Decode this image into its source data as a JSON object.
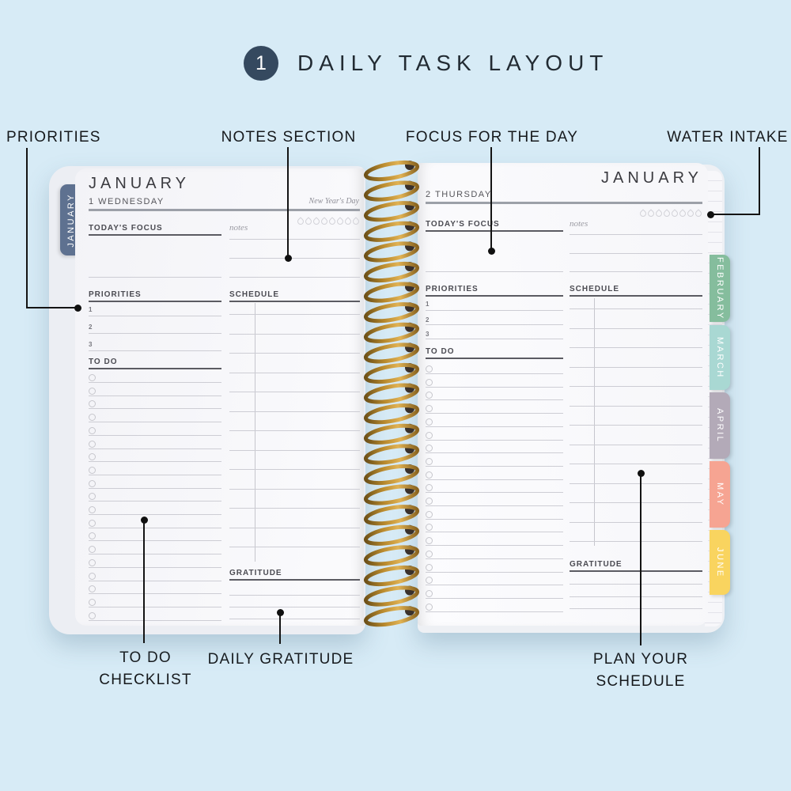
{
  "header": {
    "step_number": "1",
    "title": "DAILY TASK LAYOUT"
  },
  "callouts": {
    "priorities": "PRIORITIES",
    "notes_section": "NOTES SECTION",
    "focus_for_the_day": "FOCUS FOR THE DAY",
    "water_intake": "WATER INTAKE",
    "todo_checklist": "TO DO CHECKLIST",
    "daily_gratitude": "DAILY GRATITUDE",
    "plan_your_schedule": "PLAN YOUR SCHEDULE"
  },
  "left_page": {
    "side_tab": "JANUARY",
    "month": "JANUARY",
    "date": "1 WEDNESDAY",
    "holiday": "New Year's Day",
    "water_drops": 8,
    "focus_label": "TODAY'S FOCUS",
    "notes_label": "notes",
    "priorities_label": "PRIORITIES",
    "priority_items": [
      "1",
      "2",
      "3"
    ],
    "schedule_label": "SCHEDULE",
    "todo_label": "TO DO",
    "gratitude_label": "GRATITUDE"
  },
  "right_page": {
    "month": "JANUARY",
    "date": "2 THURSDAY",
    "water_drops": 8,
    "focus_label": "TODAY'S FOCUS",
    "notes_label": "notes",
    "priorities_label": "PRIORITIES",
    "priority_items": [
      "1",
      "2",
      "3"
    ],
    "schedule_label": "SCHEDULE",
    "todo_label": "TO DO",
    "gratitude_label": "GRATITUDE"
  },
  "month_tabs": [
    {
      "label": "FEBRUARY",
      "color": "#85bd9d"
    },
    {
      "label": "MARCH",
      "color": "#a9d8d3"
    },
    {
      "label": "APRIL",
      "color": "#b3aab8"
    },
    {
      "label": "MAY",
      "color": "#f6a492"
    },
    {
      "label": "JUNE",
      "color": "#f9d45f"
    }
  ],
  "colors": {
    "background": "#d7ebf6",
    "badge": "#35495f",
    "january_tab": "#5e7190",
    "annotation": "#101010",
    "spiral_gold": "#b98a2e"
  }
}
